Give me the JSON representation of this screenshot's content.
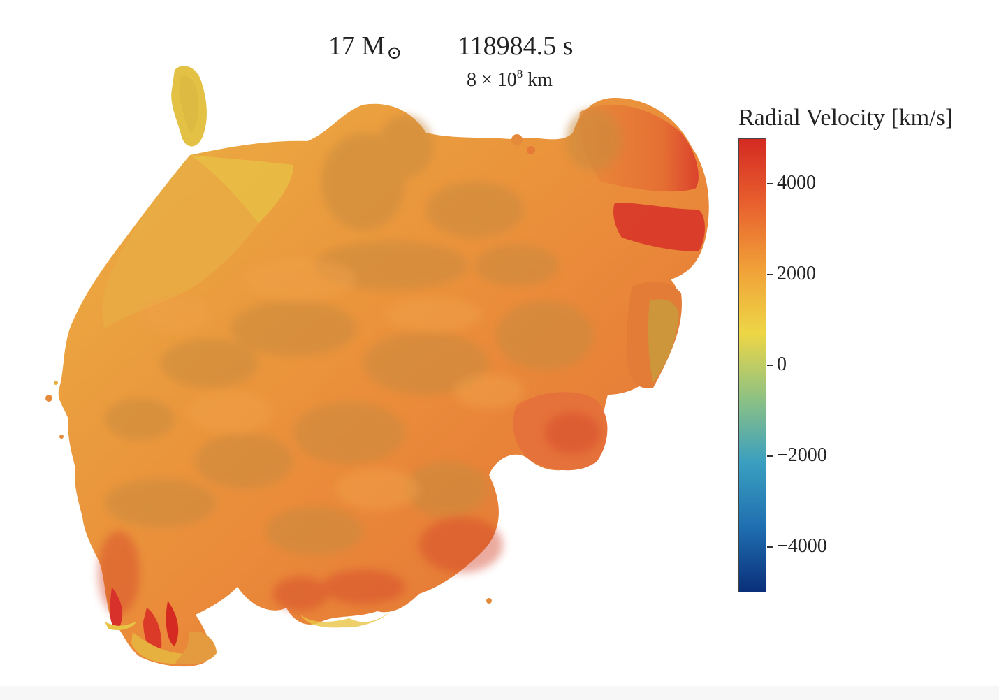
{
  "header": {
    "mass": "17 M",
    "mass_symbol": "⊙",
    "time": "118984.5 s",
    "scale_base": "8 × 10",
    "scale_exp": "8",
    "scale_unit": "km"
  },
  "colorbar": {
    "title": "Radial Velocity [km/s]",
    "range": [
      -5000,
      5000
    ],
    "colormap": [
      "#0a2f7a",
      "#1f6fb0",
      "#3a9fc0",
      "#8fc282",
      "#eed645",
      "#f0a038",
      "#e8602e",
      "#d42a22"
    ],
    "ticks": [
      {
        "value": 4000,
        "label": "4000"
      },
      {
        "value": 2000,
        "label": "2000"
      },
      {
        "value": 0,
        "label": "0"
      },
      {
        "value": -2000,
        "label": "−2000"
      },
      {
        "value": -4000,
        "label": "−4000"
      }
    ]
  },
  "colors": {
    "surface_main": "#e98a3a",
    "surface_shadow": "#c98a3e",
    "surface_edge_yellow": "#e8c845",
    "surface_hot_red": "#d8362a"
  }
}
